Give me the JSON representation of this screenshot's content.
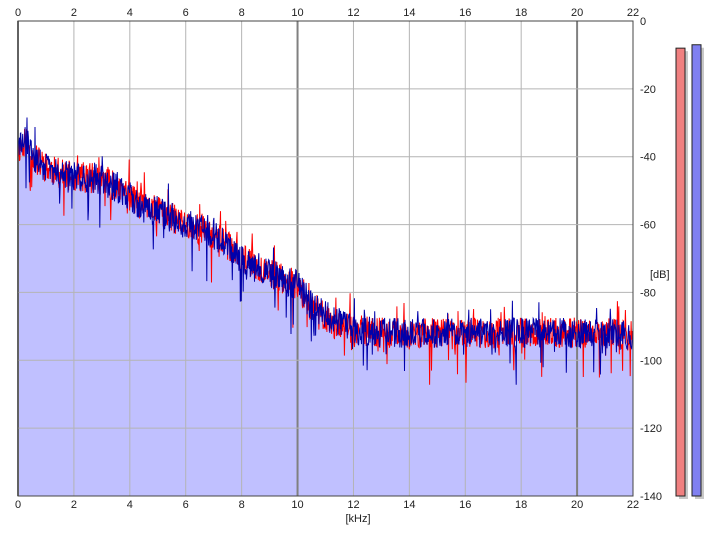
{
  "chart_data": {
    "type": "area",
    "xunit": "[kHz]",
    "yunit": "[dB]",
    "xlim": [
      0,
      22
    ],
    "ylim": [
      -140,
      0
    ],
    "x_ticks": [
      0,
      2,
      4,
      6,
      8,
      10,
      12,
      14,
      16,
      18,
      20,
      22
    ],
    "y_ticks": [
      0,
      -20,
      -40,
      -60,
      -80,
      -100,
      -120,
      -140
    ],
    "grid": true,
    "fill_color": "#c0c0ff",
    "colors": {
      "left": "#ff0000",
      "right": "#0000aa"
    },
    "envelope": {
      "x": [
        0,
        0.3,
        0.5,
        1,
        1.5,
        2,
        2.5,
        3,
        3.5,
        4,
        4.5,
        5,
        5.5,
        6,
        6.5,
        7,
        7.5,
        8,
        8.5,
        9,
        9.5,
        10,
        10.5,
        11,
        11.5,
        12,
        13,
        14,
        15,
        16,
        17,
        18,
        19,
        20,
        21,
        22
      ],
      "y": [
        -38,
        -35,
        -40,
        -43,
        -45,
        -46,
        -46,
        -47,
        -49,
        -52,
        -55,
        -56,
        -58,
        -60,
        -61,
        -63,
        -66,
        -70,
        -72,
        -74,
        -76,
        -78,
        -84,
        -87,
        -89,
        -91,
        -92,
        -92,
        -92,
        -92,
        -92,
        -92,
        -92,
        -92,
        -92,
        -93
      ]
    },
    "series": [
      {
        "name": "",
        "color": "#ff0000",
        "seed": 11
      },
      {
        "name": "",
        "color": "#0000aa",
        "seed": 29
      }
    ],
    "level_meters": [
      {
        "level_db": -8,
        "color": "#f08080"
      },
      {
        "level_db": -7,
        "color": "#8080f0"
      }
    ]
  }
}
